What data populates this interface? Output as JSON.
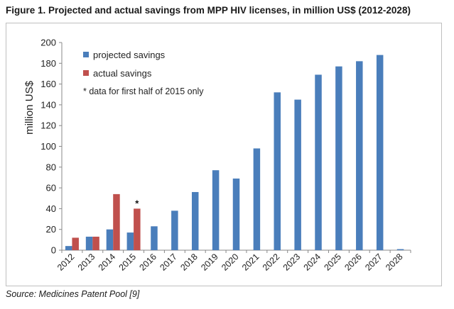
{
  "figure_title": "Figure 1. Projected and actual savings from MPP HIV licenses, in million US$ (2012-2028)",
  "source": "Source: Medicines Patent Pool [9]",
  "colors": {
    "projected": "#4a7ebb",
    "actual": "#c0504d",
    "axis": "#888888"
  },
  "chart_data": {
    "type": "bar",
    "title": "",
    "xlabel": "",
    "ylabel": "million US$",
    "ylim": [
      0,
      200
    ],
    "yticks": [
      0,
      20,
      40,
      60,
      80,
      100,
      120,
      140,
      160,
      180,
      200
    ],
    "grid": false,
    "legend_position": "top-left",
    "categories": [
      "2012",
      "2013",
      "2014",
      "2015",
      "2016",
      "2017",
      "2018",
      "2019",
      "2020",
      "2021",
      "2022",
      "2023",
      "2024",
      "2025",
      "2026",
      "2027",
      "2028"
    ],
    "series": [
      {
        "name": "projected savings",
        "color": "#4a7ebb",
        "values": [
          4,
          13,
          20,
          17,
          23,
          38,
          56,
          77,
          69,
          98,
          152,
          145,
          169,
          177,
          182,
          188,
          1
        ]
      },
      {
        "name": "actual savings",
        "color": "#c0504d",
        "values": [
          12,
          13,
          54,
          40,
          null,
          null,
          null,
          null,
          null,
          null,
          null,
          null,
          null,
          null,
          null,
          null,
          null
        ]
      }
    ],
    "note": "* data for first half of 2015 only",
    "annotations": [
      {
        "category": "2015",
        "series": "actual savings",
        "text": "*"
      }
    ]
  }
}
